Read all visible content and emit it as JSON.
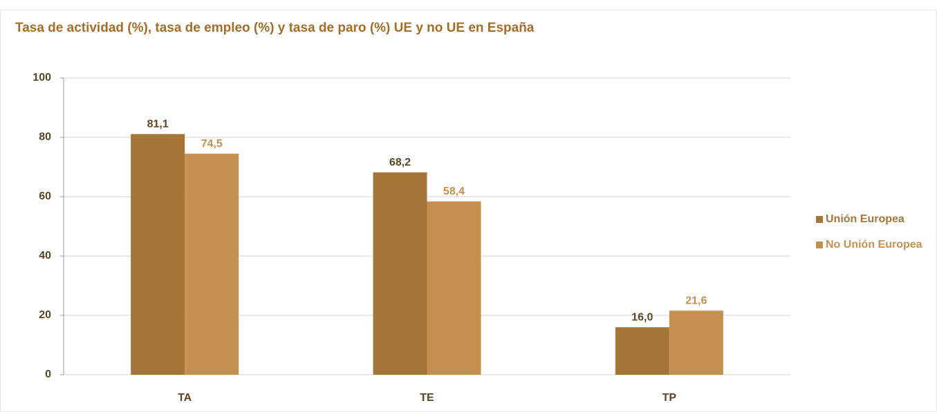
{
  "chart_data": {
    "type": "bar",
    "title": "Tasa de actividad (%), tasa de empleo (%) y tasa de paro (%) UE y no UE  en España",
    "categories": [
      "TA",
      "TE",
      "TP"
    ],
    "series": [
      {
        "name": "Unión Europea",
        "color": "#a57437",
        "values": [
          81.1,
          68.2,
          16.0
        ],
        "value_labels": [
          "81,1",
          "68,2",
          "16,0"
        ]
      },
      {
        "name": "No Unión Europea",
        "color": "#c58f4f",
        "values": [
          74.5,
          58.4,
          21.6
        ],
        "value_labels": [
          "74,5",
          "58,4",
          "21,6"
        ]
      }
    ],
    "ylim": [
      0,
      100
    ],
    "yticks": [
      0,
      20,
      40,
      60,
      80,
      100
    ],
    "grid": true,
    "legend": "right"
  }
}
